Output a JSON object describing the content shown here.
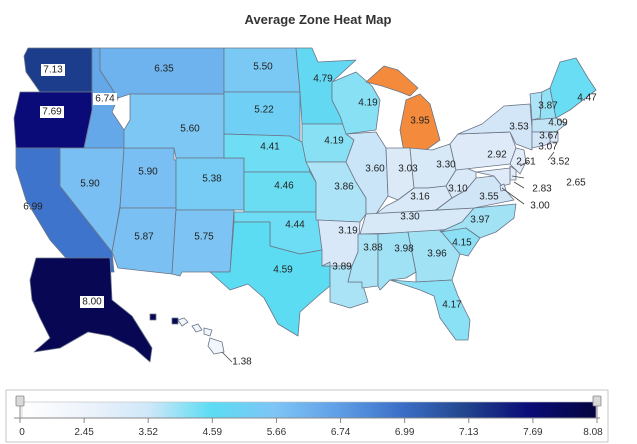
{
  "title": "Average Zone Heat Map",
  "colors": {
    "highlight": "#f48a3c",
    "scale": [
      "#ffffff",
      "#e6eef9",
      "#d3e6f7",
      "#5bdcf3",
      "#7fc6f5",
      "#64a8ea",
      "#3f74cc",
      "#1c3d8b",
      "#0a0a78",
      "#06064a"
    ]
  },
  "legend": {
    "ticks": [
      "0",
      "2.45",
      "3.52",
      "4.59",
      "5.66",
      "6.74",
      "6.99",
      "7.13",
      "7.69",
      "8.08"
    ]
  },
  "regions": [
    {
      "id": "WA",
      "value": "7.13"
    },
    {
      "id": "OR",
      "value": "7.69"
    },
    {
      "id": "ID",
      "value": "6.74"
    },
    {
      "id": "MT",
      "value": "6.35"
    },
    {
      "id": "CA",
      "value": "6.99"
    },
    {
      "id": "NV",
      "value": "5.90"
    },
    {
      "id": "UT",
      "value": "5.90"
    },
    {
      "id": "WY",
      "value": "5.60"
    },
    {
      "id": "CO",
      "value": "5.38"
    },
    {
      "id": "AZ",
      "value": "5.87"
    },
    {
      "id": "NM",
      "value": "5.75"
    },
    {
      "id": "ND",
      "value": "5.50"
    },
    {
      "id": "SD",
      "value": "5.22"
    },
    {
      "id": "NE",
      "value": "4.41"
    },
    {
      "id": "KS",
      "value": "4.46"
    },
    {
      "id": "OK",
      "value": "4.44"
    },
    {
      "id": "TX",
      "value": "4.59"
    },
    {
      "id": "MN",
      "value": "4.79"
    },
    {
      "id": "IA",
      "value": "4.19"
    },
    {
      "id": "MO",
      "value": "3.86"
    },
    {
      "id": "AR",
      "value": "3.19"
    },
    {
      "id": "LA",
      "value": "3.89"
    },
    {
      "id": "WI",
      "value": "4.19"
    },
    {
      "id": "IL",
      "value": "3.60"
    },
    {
      "id": "MI",
      "value": "3.95"
    },
    {
      "id": "IN",
      "value": "3.03"
    },
    {
      "id": "OH",
      "value": "3.30"
    },
    {
      "id": "KY",
      "value": "3.16"
    },
    {
      "id": "TN",
      "value": "3.30"
    },
    {
      "id": "MS",
      "value": "3.88"
    },
    {
      "id": "AL",
      "value": "3.98"
    },
    {
      "id": "GA",
      "value": "3.96"
    },
    {
      "id": "FL",
      "value": "4.17"
    },
    {
      "id": "SC",
      "value": "4.15"
    },
    {
      "id": "NC",
      "value": "3.97"
    },
    {
      "id": "VA",
      "value": "3.55"
    },
    {
      "id": "WV",
      "value": "3.10"
    },
    {
      "id": "PA",
      "value": "2.92"
    },
    {
      "id": "NY",
      "value": "3.53"
    },
    {
      "id": "VT",
      "value": "3.87"
    },
    {
      "id": "NH",
      "value": "4.09"
    },
    {
      "id": "ME",
      "value": "4.47"
    },
    {
      "id": "MA",
      "value": "3.67"
    },
    {
      "id": "RI",
      "value": "3.07"
    },
    {
      "id": "CT",
      "value": "3.52"
    },
    {
      "id": "NJ",
      "value": "2.61"
    },
    {
      "id": "DE",
      "value": "2.65"
    },
    {
      "id": "MD",
      "value": "2.83"
    },
    {
      "id": "DC",
      "value": "3.00"
    },
    {
      "id": "AK",
      "value": "8.00"
    },
    {
      "id": "HI",
      "value": "1.38"
    }
  ]
}
